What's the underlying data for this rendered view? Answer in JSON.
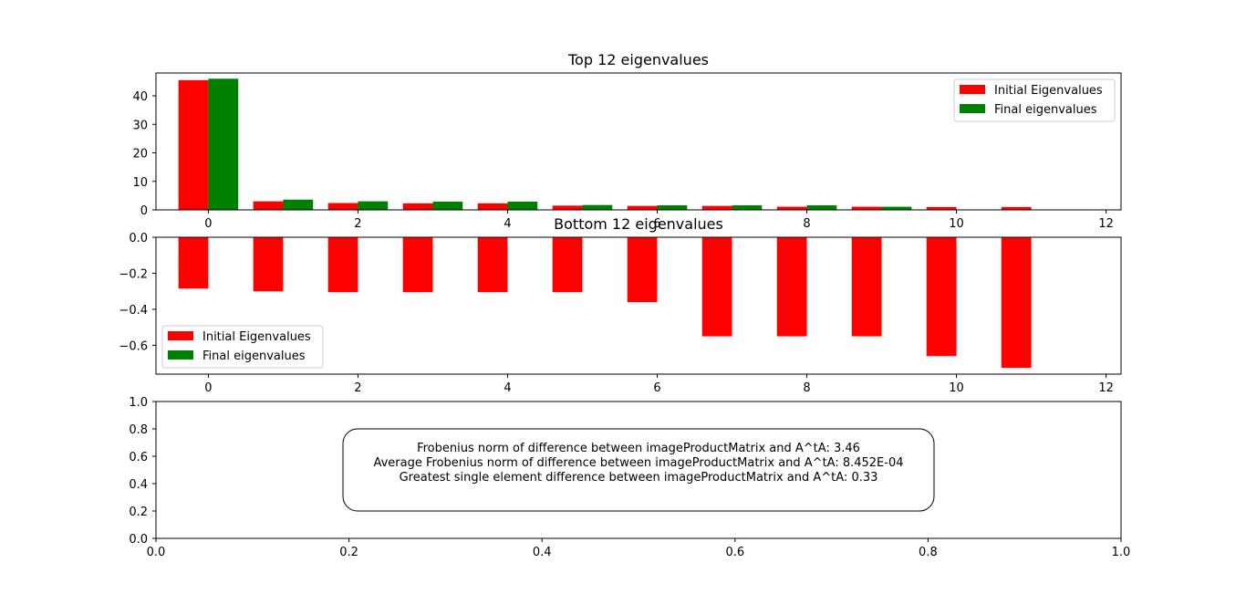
{
  "chart_data": [
    {
      "type": "bar",
      "title": "Top 12 eigenvalues",
      "x": [
        0,
        1,
        2,
        3,
        4,
        5,
        6,
        7,
        8,
        9,
        10,
        11
      ],
      "series": [
        {
          "name": "Initial Eigenvalues",
          "color": "#ff0000",
          "values": [
            45.5,
            3.0,
            2.4,
            2.3,
            2.3,
            1.5,
            1.4,
            1.4,
            1.1,
            1.1,
            1.0,
            1.0
          ]
        },
        {
          "name": "Final eigenvalues",
          "color": "#008000",
          "values": [
            46.0,
            3.6,
            3.0,
            2.9,
            2.9,
            1.7,
            1.6,
            1.6,
            1.6,
            1.1,
            0.0,
            0.0
          ]
        }
      ],
      "xlim": [
        -0.7,
        12.2
      ],
      "ylim": [
        0,
        48
      ],
      "xticks": [
        "0",
        "2",
        "4",
        "6",
        "8",
        "10",
        "12"
      ],
      "yticks": [
        "0",
        "10",
        "20",
        "30",
        "40"
      ],
      "legend_position": "upper right",
      "grid": false
    },
    {
      "type": "bar",
      "title": "Bottom 12 eigenvalues",
      "x": [
        0,
        1,
        2,
        3,
        4,
        5,
        6,
        7,
        8,
        9,
        10,
        11
      ],
      "series": [
        {
          "name": "Initial Eigenvalues",
          "color": "#ff0000",
          "values": [
            -0.285,
            -0.3,
            -0.305,
            -0.305,
            -0.305,
            -0.305,
            -0.36,
            -0.55,
            -0.55,
            -0.55,
            -0.66,
            -0.725
          ]
        },
        {
          "name": "Final eigenvalues",
          "color": "#008000",
          "values": [
            0,
            0,
            0,
            0,
            0,
            0,
            0,
            0,
            0,
            0,
            0,
            0
          ]
        }
      ],
      "xlim": [
        -0.7,
        12.2
      ],
      "ylim": [
        -0.76,
        0.0
      ],
      "xticks": [
        "0",
        "2",
        "4",
        "6",
        "8",
        "10",
        "12"
      ],
      "yticks": [
        "0.0",
        "−0.2",
        "−0.4",
        "−0.6"
      ],
      "legend_position": "lower left",
      "grid": false
    },
    {
      "type": "text",
      "xlim": [
        0,
        1
      ],
      "ylim": [
        0,
        1
      ],
      "xticks": [
        "0.0",
        "0.2",
        "0.4",
        "0.6",
        "0.8",
        "1.0"
      ],
      "yticks": [
        "0.0",
        "0.2",
        "0.4",
        "0.6",
        "0.8",
        "1.0"
      ],
      "annotation_lines": [
        "Frobenius norm of difference between imageProductMatrix and A^tA: 3.46",
        "Average Frobenius norm of difference between imageProductMatrix and A^tA: 8.452E-04",
        "Greatest single element difference between imageProductMatrix and A^tA: 0.33"
      ]
    }
  ]
}
